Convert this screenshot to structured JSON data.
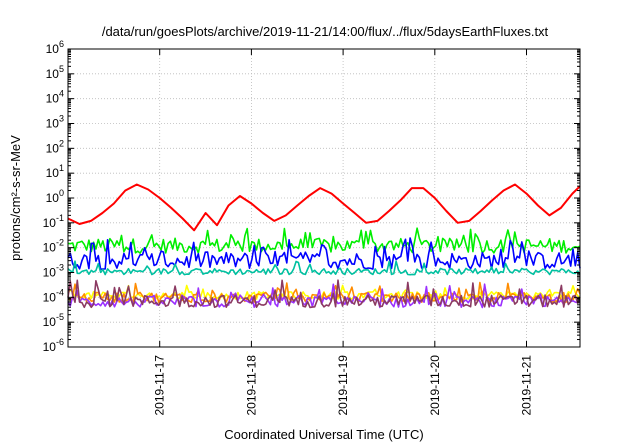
{
  "chart_data": {
    "type": "line",
    "title": "/data/run/goesPlots/archive/2019-11-21/14:00/flux/../flux/5daysEarthFluxes.txt",
    "xlabel": "Coordinated Universal Time (UTC)",
    "ylabel": "protons/cm²-s-sr-MeV",
    "x_range": [
      "2019-11-16T00:00",
      "2019-11-21T14:00"
    ],
    "x_scale": "time",
    "y_scale": "log",
    "ylim": [
      1e-06,
      1000000.0
    ],
    "y_tick_exponents": [
      -6,
      -5,
      -4,
      -3,
      -2,
      -1,
      0,
      1,
      2,
      3,
      4,
      5,
      6
    ],
    "x_ticks": [
      "2019-11-17",
      "2019-11-18",
      "2019-11-19",
      "2019-11-20",
      "2019-11-21"
    ],
    "grid": true,
    "legend": "none",
    "series": [
      {
        "color": "#ff0000",
        "points": [
          [
            "2019-11-16T00:00",
            0.15
          ],
          [
            "2019-11-16T03:00",
            0.09
          ],
          [
            "2019-11-16T06:00",
            0.12
          ],
          [
            "2019-11-16T09:00",
            0.25
          ],
          [
            "2019-11-16T12:00",
            0.6
          ],
          [
            "2019-11-16T15:00",
            2.0
          ],
          [
            "2019-11-16T18:00",
            3.5
          ],
          [
            "2019-11-16T21:00",
            2.2
          ],
          [
            "2019-11-17T00:00",
            1.0
          ],
          [
            "2019-11-17T03:00",
            0.4
          ],
          [
            "2019-11-17T06:00",
            0.15
          ],
          [
            "2019-11-17T09:00",
            0.05
          ],
          [
            "2019-11-17T12:00",
            0.25
          ],
          [
            "2019-11-17T15:00",
            0.08
          ],
          [
            "2019-11-17T18:00",
            0.5
          ],
          [
            "2019-11-17T21:00",
            1.2
          ],
          [
            "2019-11-18T00:00",
            0.6
          ],
          [
            "2019-11-18T03:00",
            0.25
          ],
          [
            "2019-11-18T06:00",
            0.12
          ],
          [
            "2019-11-18T09:00",
            0.2
          ],
          [
            "2019-11-18T12:00",
            0.5
          ],
          [
            "2019-11-18T15:00",
            1.2
          ],
          [
            "2019-11-18T18:00",
            2.5
          ],
          [
            "2019-11-18T21:00",
            1.5
          ],
          [
            "2019-11-19T00:00",
            0.6
          ],
          [
            "2019-11-19T03:00",
            0.25
          ],
          [
            "2019-11-19T06:00",
            0.1
          ],
          [
            "2019-11-19T09:00",
            0.12
          ],
          [
            "2019-11-19T12:00",
            0.3
          ],
          [
            "2019-11-19T15:00",
            0.8
          ],
          [
            "2019-11-19T18:00",
            2.5
          ],
          [
            "2019-11-19T21:00",
            2.5
          ],
          [
            "2019-11-20T00:00",
            1.0
          ],
          [
            "2019-11-20T03:00",
            0.3
          ],
          [
            "2019-11-20T06:00",
            0.1
          ],
          [
            "2019-11-20T09:00",
            0.12
          ],
          [
            "2019-11-20T12:00",
            0.3
          ],
          [
            "2019-11-20T15:00",
            0.8
          ],
          [
            "2019-11-20T18:00",
            2.0
          ],
          [
            "2019-11-20T21:00",
            3.5
          ],
          [
            "2019-11-21T00:00",
            1.5
          ],
          [
            "2019-11-21T03:00",
            0.5
          ],
          [
            "2019-11-21T06:00",
            0.2
          ],
          [
            "2019-11-21T09:00",
            0.4
          ],
          [
            "2019-11-21T12:00",
            1.5
          ],
          [
            "2019-11-21T14:00",
            3.0
          ]
        ]
      },
      {
        "color": "#00ee00",
        "base": 0.012,
        "spike": 0.07,
        "noise": 0.6
      },
      {
        "color": "#0000ff",
        "base": 0.003,
        "spike": 0.025,
        "noise": 0.7
      },
      {
        "color": "#00c0a0",
        "base": 0.0011,
        "spike": 0.003,
        "noise": 0.25
      },
      {
        "color": "#ffff00",
        "base": 0.00012,
        "spike": 0.0003,
        "noise": 0.3
      },
      {
        "color": "#ff8c00",
        "base": 0.0001,
        "spike": 0.0004,
        "noise": 0.4
      },
      {
        "color": "#9b30ff",
        "base": 6.5e-05,
        "spike": 0.0004,
        "noise": 0.45
      },
      {
        "color": "#8b3a62",
        "base": 7e-05,
        "spike": 0.0005,
        "noise": 0.5
      }
    ]
  }
}
